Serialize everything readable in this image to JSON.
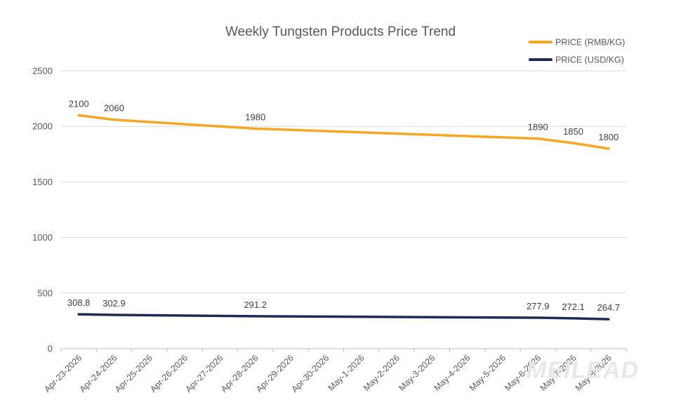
{
  "chart_data": {
    "type": "line",
    "title": "Weekly Tungsten Products Price Trend",
    "xlabel": "",
    "ylabel": "",
    "ylim": [
      0,
      2500
    ],
    "yticks": [
      0,
      500,
      1000,
      1500,
      2000,
      2500
    ],
    "grid": true,
    "legend_position": "top-right",
    "categories": [
      "Apr-23-2026",
      "Apr-24-2026",
      "Apr-25-2026",
      "Apr-26-2026",
      "Apr-27-2026",
      "Apr-28-2026",
      "Apr-29-2026",
      "Apr-30-2026",
      "May-1-2026",
      "May-2-2026",
      "May-3-2026",
      "May-4-2026",
      "May-5-2026",
      "May-6-2026",
      "May-7-2026",
      "May-8-2026"
    ],
    "series": [
      {
        "name": "PRICE (RMB/KG)",
        "color": "#f5a623",
        "x": [
          "Apr-23-2026",
          "Apr-24-2026",
          "Apr-28-2026",
          "May-6-2026",
          "May-7-2026",
          "May-8-2026"
        ],
        "values": [
          2100,
          2060,
          1980,
          1890,
          1850,
          1800
        ],
        "labels": [
          "2100",
          "2060",
          "1980",
          "1890",
          "1850",
          "1800"
        ]
      },
      {
        "name": "PRICE (USD/KG)",
        "color": "#1f2a56",
        "x": [
          "Apr-23-2026",
          "Apr-24-2026",
          "Apr-28-2026",
          "May-6-2026",
          "May-7-2026",
          "May-8-2026"
        ],
        "values": [
          308.8,
          302.9,
          291.2,
          277.9,
          272.1,
          264.7
        ],
        "labels": [
          "308.8",
          "302.9",
          "291.2",
          "277.9",
          "272.1",
          "264.7"
        ]
      }
    ]
  },
  "watermark": "MEILEAD"
}
